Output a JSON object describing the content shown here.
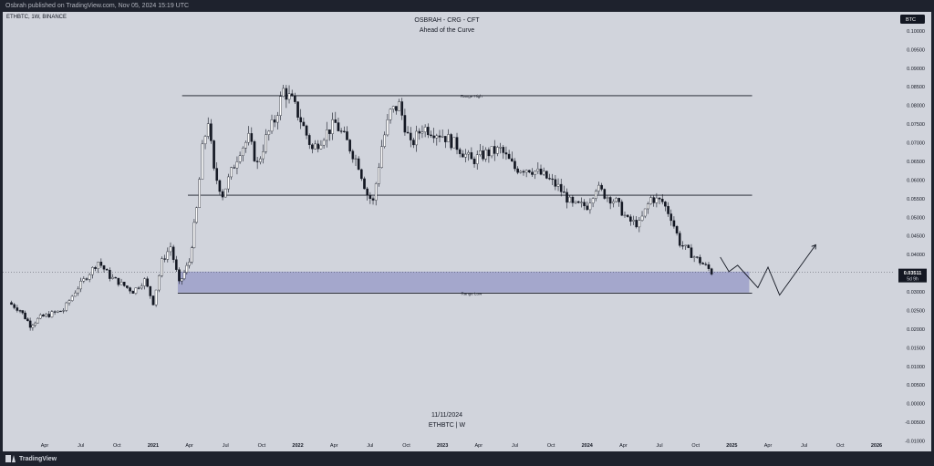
{
  "header": {
    "published": "Osbrah published on TradingView.com, Nov 05, 2024 15:19 UTC",
    "symbol_info": "ETHBTC, 1W, BINANCE",
    "title": "OSBRAH - CRG - CFT",
    "subtitle": "Ahead of the Curve",
    "currency_badge": "BTC"
  },
  "footer": {
    "brand": "TradingView",
    "date_label": "11/11/2024",
    "symbol_label": "ETHBTC | W"
  },
  "colors": {
    "background": "#d1d4dc",
    "frame": "#1e222d",
    "up_candle": "#ffffff",
    "down_candle": "#131722",
    "zone_fill": "#9c9fc9",
    "line": "#131722",
    "badge": "#131722"
  },
  "chart_data": {
    "type": "candlestick",
    "title": "OSBRAH - CRG - CFT",
    "subtitle": "Ahead of the Curve",
    "ylim": [
      -0.01,
      0.105
    ],
    "y_ticks": [
      "0.10000",
      "0.09500",
      "0.09000",
      "0.08500",
      "0.08000",
      "0.07500",
      "0.07000",
      "0.06500",
      "0.06000",
      "0.05500",
      "0.05000",
      "0.04500",
      "0.04000",
      "0.03500",
      "0.03000",
      "0.02500",
      "0.02000",
      "0.01500",
      "0.01000",
      "0.00500",
      "0.00000",
      "-0.00500",
      "-0.01000"
    ],
    "x_ticks": [
      "Apr",
      "Jul",
      "Oct",
      "2021",
      "Apr",
      "Jul",
      "Oct",
      "2022",
      "Apr",
      "Jul",
      "Oct",
      "2023",
      "Apr",
      "Jul",
      "Oct",
      "2024",
      "Apr",
      "Jul",
      "Oct",
      "2025",
      "Apr",
      "Jul",
      "Oct",
      "2026"
    ],
    "current_price": {
      "value": 0.03511,
      "label": "0.03511",
      "countdown": "5d 9h"
    },
    "levels": [
      {
        "label": "Range High",
        "value": 0.0825
      },
      {
        "label": "",
        "value": 0.0558
      },
      {
        "label": "Range Low",
        "value": 0.0295
      }
    ],
    "zone": {
      "from": 0.0297,
      "to": 0.0353
    },
    "projection": [
      {
        "t": 2024.92,
        "v": 0.0392
      },
      {
        "t": 2024.98,
        "v": 0.0353
      },
      {
        "t": 2025.04,
        "v": 0.037
      },
      {
        "t": 2025.18,
        "v": 0.031
      },
      {
        "t": 2025.25,
        "v": 0.0365
      },
      {
        "t": 2025.33,
        "v": 0.029
      },
      {
        "t": 2025.58,
        "v": 0.0425
      }
    ],
    "series": [
      {
        "name": "ETHBTC",
        "points": [
          [
            2020.0,
            0.027
          ],
          [
            2020.08,
            0.025
          ],
          [
            2020.15,
            0.021
          ],
          [
            2020.22,
            0.023
          ],
          [
            2020.3,
            0.024
          ],
          [
            2020.38,
            0.025
          ],
          [
            2020.46,
            0.03
          ],
          [
            2020.54,
            0.034
          ],
          [
            2020.62,
            0.038
          ],
          [
            2020.7,
            0.034
          ],
          [
            2020.78,
            0.032
          ],
          [
            2020.86,
            0.03
          ],
          [
            2020.94,
            0.033
          ],
          [
            2021.0,
            0.027
          ],
          [
            2021.06,
            0.038
          ],
          [
            2021.12,
            0.042
          ],
          [
            2021.18,
            0.032
          ],
          [
            2021.25,
            0.038
          ],
          [
            2021.3,
            0.052
          ],
          [
            2021.34,
            0.068
          ],
          [
            2021.38,
            0.076
          ],
          [
            2021.42,
            0.062
          ],
          [
            2021.48,
            0.056
          ],
          [
            2021.54,
            0.062
          ],
          [
            2021.6,
            0.068
          ],
          [
            2021.66,
            0.071
          ],
          [
            2021.72,
            0.064
          ],
          [
            2021.78,
            0.071
          ],
          [
            2021.84,
            0.076
          ],
          [
            2021.9,
            0.084
          ],
          [
            2021.96,
            0.081
          ],
          [
            2022.02,
            0.076
          ],
          [
            2022.1,
            0.068
          ],
          [
            2022.18,
            0.072
          ],
          [
            2022.26,
            0.075
          ],
          [
            2022.34,
            0.07
          ],
          [
            2022.42,
            0.064
          ],
          [
            2022.48,
            0.056
          ],
          [
            2022.52,
            0.054
          ],
          [
            2022.58,
            0.069
          ],
          [
            2022.64,
            0.078
          ],
          [
            2022.7,
            0.08
          ],
          [
            2022.78,
            0.069
          ],
          [
            2022.86,
            0.074
          ],
          [
            2022.94,
            0.073
          ],
          [
            2023.0,
            0.072
          ],
          [
            2023.1,
            0.069
          ],
          [
            2023.2,
            0.065
          ],
          [
            2023.3,
            0.067
          ],
          [
            2023.4,
            0.068
          ],
          [
            2023.5,
            0.063
          ],
          [
            2023.6,
            0.063
          ],
          [
            2023.7,
            0.061
          ],
          [
            2023.8,
            0.058
          ],
          [
            2023.9,
            0.053
          ],
          [
            2024.0,
            0.053
          ],
          [
            2024.06,
            0.058
          ],
          [
            2024.12,
            0.056
          ],
          [
            2024.2,
            0.054
          ],
          [
            2024.28,
            0.049
          ],
          [
            2024.36,
            0.048
          ],
          [
            2024.44,
            0.055
          ],
          [
            2024.52,
            0.054
          ],
          [
            2024.58,
            0.05
          ],
          [
            2024.64,
            0.043
          ],
          [
            2024.72,
            0.04
          ],
          [
            2024.78,
            0.038
          ],
          [
            2024.84,
            0.036
          ],
          [
            2024.86,
            0.0351
          ]
        ]
      }
    ]
  }
}
